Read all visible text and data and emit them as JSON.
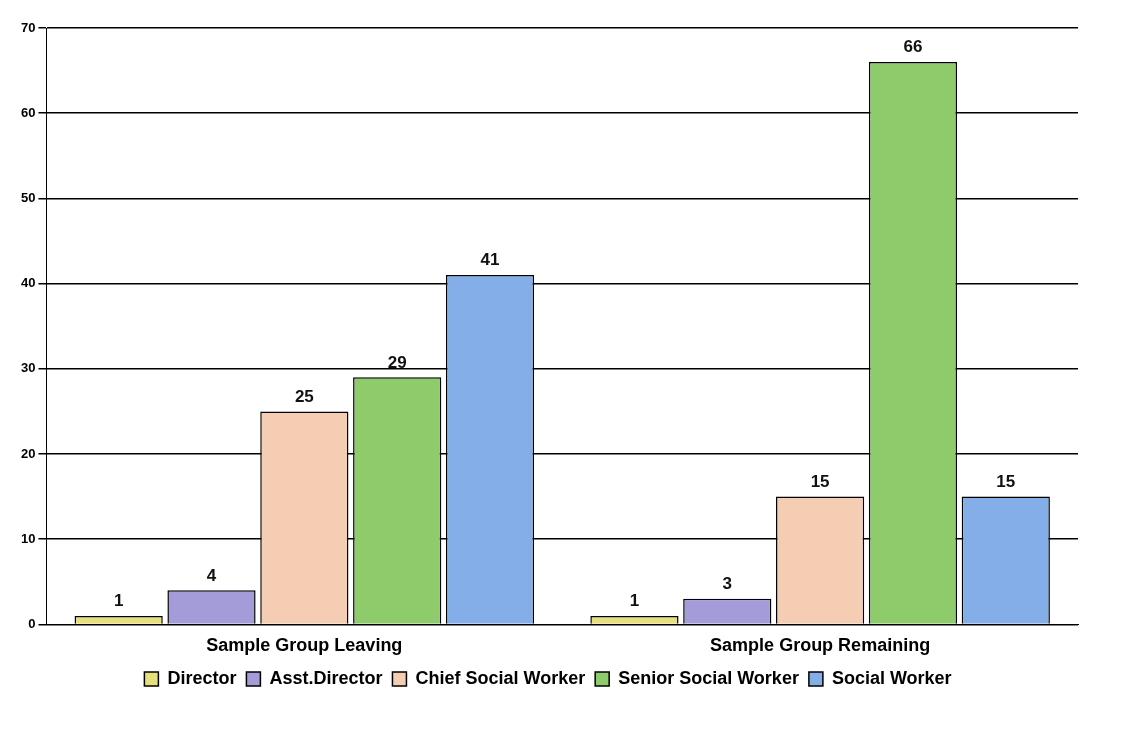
{
  "chart_data": {
    "type": "bar",
    "categories": [
      "Sample Group Leaving",
      "Sample Group Remaining"
    ],
    "series": [
      {
        "name": "Director",
        "color": "#e6df7c",
        "values": [
          1,
          1
        ]
      },
      {
        "name": "Asst.Director",
        "color": "#a39cd9",
        "values": [
          4,
          3
        ]
      },
      {
        "name": "Chief Social Worker",
        "color": "#f5cdb3",
        "values": [
          25,
          15
        ]
      },
      {
        "name": "Senior Social Worker",
        "color": "#8ecb6b",
        "values": [
          29,
          66
        ]
      },
      {
        "name": "Social Worker",
        "color": "#84aee8",
        "values": [
          41,
          15
        ]
      }
    ],
    "ylim": [
      0,
      70
    ],
    "yticks": [
      0,
      10,
      20,
      30,
      40,
      50,
      60,
      70
    ],
    "grid": "y",
    "legend": "bottom",
    "data_labels": true
  }
}
